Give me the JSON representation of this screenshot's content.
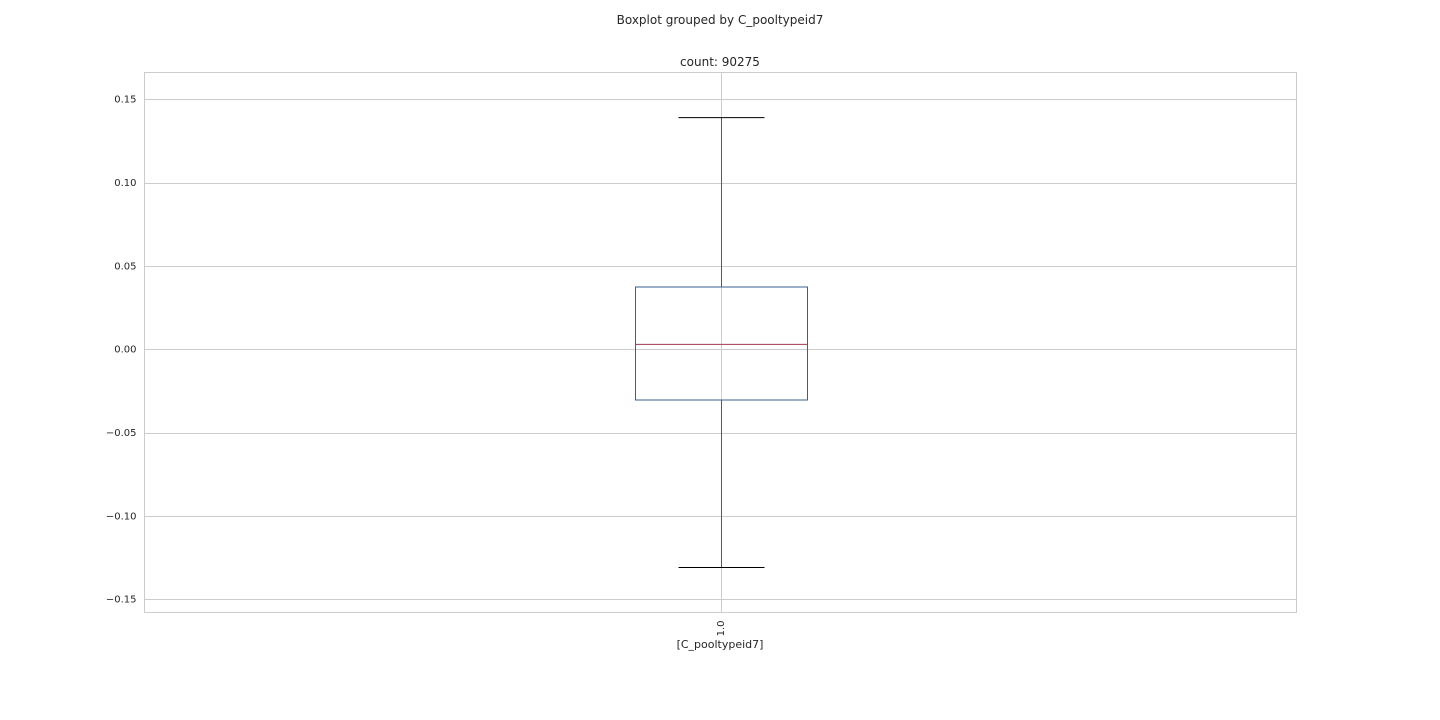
{
  "chart_data": {
    "type": "box",
    "suptitle": "Boxplot grouped by C_pooltypeid7",
    "title": "count: 90275",
    "xlabel": "[C_pooltypeid7]",
    "ylabel": "",
    "categories": [
      "1.0"
    ],
    "yticks": [
      -0.15,
      -0.1,
      -0.05,
      0.0,
      0.05,
      0.1,
      0.15
    ],
    "ytick_labels": [
      "−0.15",
      "−0.10",
      "−0.05",
      "0.00",
      "0.05",
      "0.10",
      "0.15"
    ],
    "ylim": [
      -0.158,
      0.166
    ],
    "grid": true,
    "boxes": [
      {
        "category": "1.0",
        "whisker_low": -0.131,
        "q1": -0.0305,
        "median": 0.0029,
        "q3": 0.0373,
        "whisker_high": 0.1389
      }
    ],
    "colors": {
      "box": "#3a5f8f",
      "median": "#a33a4e",
      "whisker_cap": "#000000",
      "grid": "#cccccc",
      "frame": "#cccccc"
    }
  }
}
